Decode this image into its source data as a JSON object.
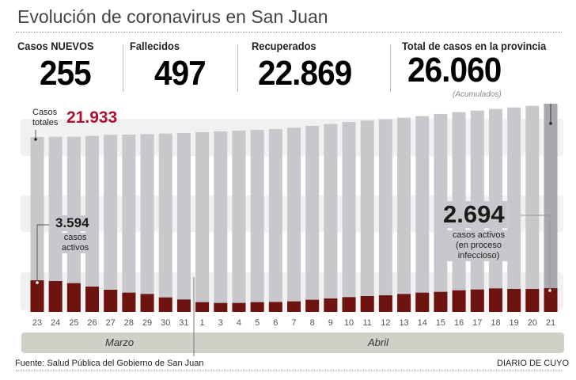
{
  "title": "Evolución de coronavirus en San Juan",
  "stats": [
    {
      "label": "Casos NUEVOS",
      "value": "255",
      "color": "#b0102d"
    },
    {
      "label": "Fallecidos",
      "value": "497",
      "color": "#1a1a1a"
    },
    {
      "label": "Recuperados",
      "value": "22.869",
      "color": "#1e96d2"
    },
    {
      "label": "Total de casos en la provincia",
      "value": "26.060",
      "color": "#b0102d",
      "note": "(Acumulados)"
    }
  ],
  "annotations": {
    "total_label_1": "Casos",
    "total_label_2": "totales",
    "total_value": "21.933",
    "active_start_value": "3.594",
    "active_start_label_1": "casos",
    "active_start_label_2": "activos",
    "active_end_value": "2.694",
    "active_end_label_1": "casos activos",
    "active_end_label_2": "(en proceso",
    "active_end_label_3": "infeccioso)"
  },
  "months": [
    "Marzo",
    "Abril"
  ],
  "footer": {
    "source": "Fuente: Salud Pública del Gobierno de San Juan",
    "brand": "DIARIO DE CUYO"
  },
  "chart_data": {
    "type": "bar",
    "categories": [
      "23",
      "24",
      "25",
      "26",
      "27",
      "28",
      "29",
      "30",
      "31",
      "1",
      "3",
      "4",
      "5",
      "6",
      "7",
      "8",
      "9",
      "10",
      "11",
      "12",
      "13",
      "14",
      "15",
      "16",
      "17",
      "18",
      "19",
      "20",
      "21"
    ],
    "series": [
      {
        "name": "Casos totales",
        "color": "#c8c8cc",
        "values": [
          21933,
          21960,
          21960,
          22060,
          22200,
          22230,
          22280,
          22360,
          22430,
          22530,
          22620,
          22720,
          22820,
          22920,
          23080,
          23310,
          23540,
          23800,
          23960,
          24130,
          24330,
          24520,
          24790,
          25020,
          25210,
          25410,
          25600,
          25800,
          26060
        ]
      },
      {
        "name": "casos activos",
        "color": "#6e1410",
        "values": [
          3594,
          3510,
          3270,
          2880,
          2520,
          2190,
          2040,
          1650,
          1410,
          1110,
          1020,
          1020,
          1110,
          1130,
          1200,
          1380,
          1530,
          1680,
          1800,
          1890,
          2040,
          2190,
          2280,
          2460,
          2550,
          2670,
          2610,
          2610,
          2694
        ]
      }
    ],
    "highlight_last_color": "#a9a9ad",
    "grid": false,
    "legend": "none"
  }
}
